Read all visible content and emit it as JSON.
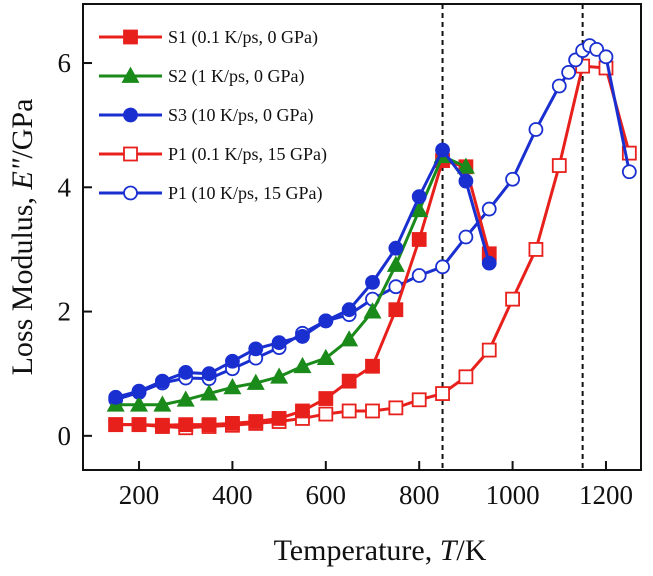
{
  "chart_data": {
    "type": "line",
    "xlabel": {
      "prefix": "Temperature, ",
      "italic": "T",
      "suffix": "/K"
    },
    "ylabel": {
      "prefix": "Loss Modulus, ",
      "italic": "E\"",
      "suffix": "/GPa"
    },
    "xlim": [
      80,
      1275
    ],
    "ylim": [
      -0.55,
      6.95
    ],
    "x_ticks": [
      200,
      400,
      600,
      800,
      1000,
      1200
    ],
    "y_ticks": [
      0,
      2,
      4,
      6
    ],
    "grid": false,
    "legend_position": "top-left",
    "reference_lines_x": [
      850,
      1150
    ],
    "series": [
      {
        "name": "S1 (0.1 K/ps, 0 GPa)",
        "color": "#e8201c",
        "marker": "square",
        "filled": true,
        "x": [
          150,
          200,
          250,
          300,
          350,
          400,
          450,
          500,
          550,
          600,
          650,
          700,
          750,
          800,
          850,
          900,
          950
        ],
        "y": [
          0.18,
          0.18,
          0.17,
          0.18,
          0.18,
          0.2,
          0.23,
          0.28,
          0.4,
          0.6,
          0.88,
          1.12,
          2.03,
          3.16,
          4.43,
          4.33,
          2.93
        ]
      },
      {
        "name": "S2 (1 K/ps, 0 GPa)",
        "color": "#1a8a1a",
        "marker": "triangle",
        "filled": true,
        "x": [
          150,
          200,
          250,
          300,
          350,
          400,
          450,
          500,
          550,
          600,
          650,
          700,
          750,
          800,
          850,
          900
        ],
        "y": [
          0.5,
          0.5,
          0.5,
          0.58,
          0.68,
          0.78,
          0.85,
          0.95,
          1.12,
          1.25,
          1.55,
          2.0,
          2.75,
          3.63,
          4.5,
          4.33
        ]
      },
      {
        "name": "S3 (10 K/ps, 0 GPa)",
        "color": "#1a2fd0",
        "marker": "circle",
        "filled": true,
        "x": [
          150,
          200,
          250,
          300,
          350,
          400,
          450,
          500,
          550,
          600,
          650,
          700,
          750,
          800,
          850,
          900,
          950
        ],
        "y": [
          0.62,
          0.72,
          0.88,
          1.02,
          1.0,
          1.2,
          1.4,
          1.5,
          1.6,
          1.85,
          2.03,
          2.47,
          3.02,
          3.85,
          4.6,
          4.1,
          2.78
        ]
      },
      {
        "name": "P1 (0.1 K/ps, 15 GPa)",
        "color": "#e8201c",
        "marker": "square",
        "filled": false,
        "x": [
          150,
          200,
          250,
          300,
          350,
          400,
          450,
          500,
          550,
          600,
          650,
          700,
          750,
          800,
          850,
          900,
          950,
          1000,
          1050,
          1100,
          1150,
          1200,
          1250
        ],
        "y": [
          0.18,
          0.18,
          0.15,
          0.13,
          0.15,
          0.17,
          0.2,
          0.23,
          0.28,
          0.35,
          0.4,
          0.4,
          0.45,
          0.58,
          0.68,
          0.95,
          1.38,
          2.2,
          3.0,
          4.35,
          5.95,
          5.92,
          4.55
        ]
      },
      {
        "name": "P1 (10 K/ps, 15 GPa)",
        "color": "#1a2fd0",
        "marker": "circle",
        "filled": false,
        "x": [
          150,
          200,
          250,
          300,
          350,
          400,
          450,
          500,
          550,
          600,
          650,
          700,
          750,
          800,
          850,
          900,
          950,
          1000,
          1050,
          1100,
          1120,
          1135,
          1150,
          1165,
          1180,
          1200,
          1250
        ],
        "y": [
          0.58,
          0.7,
          0.85,
          0.93,
          0.92,
          1.08,
          1.25,
          1.42,
          1.65,
          1.85,
          1.95,
          2.2,
          2.4,
          2.58,
          2.72,
          3.2,
          3.65,
          4.13,
          4.93,
          5.63,
          5.85,
          6.05,
          6.2,
          6.28,
          6.22,
          6.1,
          4.25
        ]
      }
    ]
  }
}
